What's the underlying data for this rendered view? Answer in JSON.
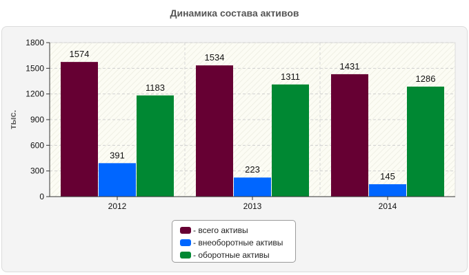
{
  "chart_data": {
    "type": "bar",
    "title": "Динамика состава активов",
    "ylabel": "тыс.",
    "xlabel": "",
    "categories": [
      "2012",
      "2013",
      "2014"
    ],
    "ylim": [
      0,
      1800
    ],
    "yticks": [
      "0",
      "300",
      "600",
      "900",
      "1200",
      "1500",
      "1800"
    ],
    "grid": true,
    "legend_position": "bottom",
    "series": [
      {
        "name": "- всего активы",
        "values": [
          1574,
          1534,
          1431
        ],
        "color": "#660033"
      },
      {
        "name": "- внеоборотные активы",
        "values": [
          391,
          223,
          145
        ],
        "color": "#0066ff"
      },
      {
        "name": "- оборотные активы",
        "values": [
          1183,
          1311,
          1286
        ],
        "color": "#008833"
      }
    ]
  }
}
